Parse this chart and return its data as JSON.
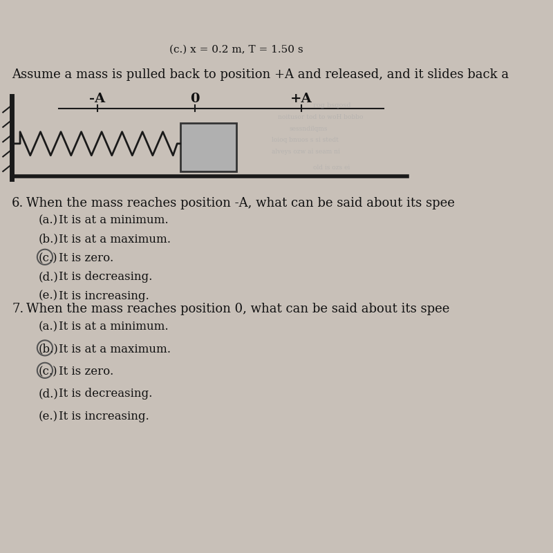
{
  "bg_color": "#c8c0b8",
  "top_text": "(c.) x = 0.2 m, T = 1.50 s",
  "intro_text": "Assume a mass is pulled back to position +A and released, and it slides back a",
  "q6_question": "When the mass reaches position -A, what can be said about its spee",
  "q7_question": "When the mass reaches position 0, what can be said about its spee",
  "q6_options": [
    {
      "label": "(a.)",
      "text": "It is at a minimum.",
      "circled": false
    },
    {
      "label": "(b.)",
      "text": "It is at a maximum.",
      "circled": false
    },
    {
      "label": "(c.)",
      "text": "It is zero.",
      "circled": true
    },
    {
      "label": "(d.)",
      "text": "It is decreasing.",
      "circled": false
    },
    {
      "label": "(e.)",
      "text": "It is increasing.",
      "circled": false
    }
  ],
  "q7_options": [
    {
      "label": "(a.)",
      "text": "It is at a minimum.",
      "circled": false
    },
    {
      "label": "(b.)",
      "text": "It is at a maximum.",
      "circled": true
    },
    {
      "label": "(c.)",
      "text": "It is zero.",
      "circled": true
    },
    {
      "label": "(d.)",
      "text": "It is decreasing.",
      "circled": false
    },
    {
      "label": "(e.)",
      "text": "It is increasing.",
      "circled": false
    }
  ],
  "font_size_question": 13,
  "font_size_option": 12,
  "font_size_top": 11,
  "text_color": "#111111",
  "circle_color": "#555555",
  "faded_text_color": "#888888"
}
